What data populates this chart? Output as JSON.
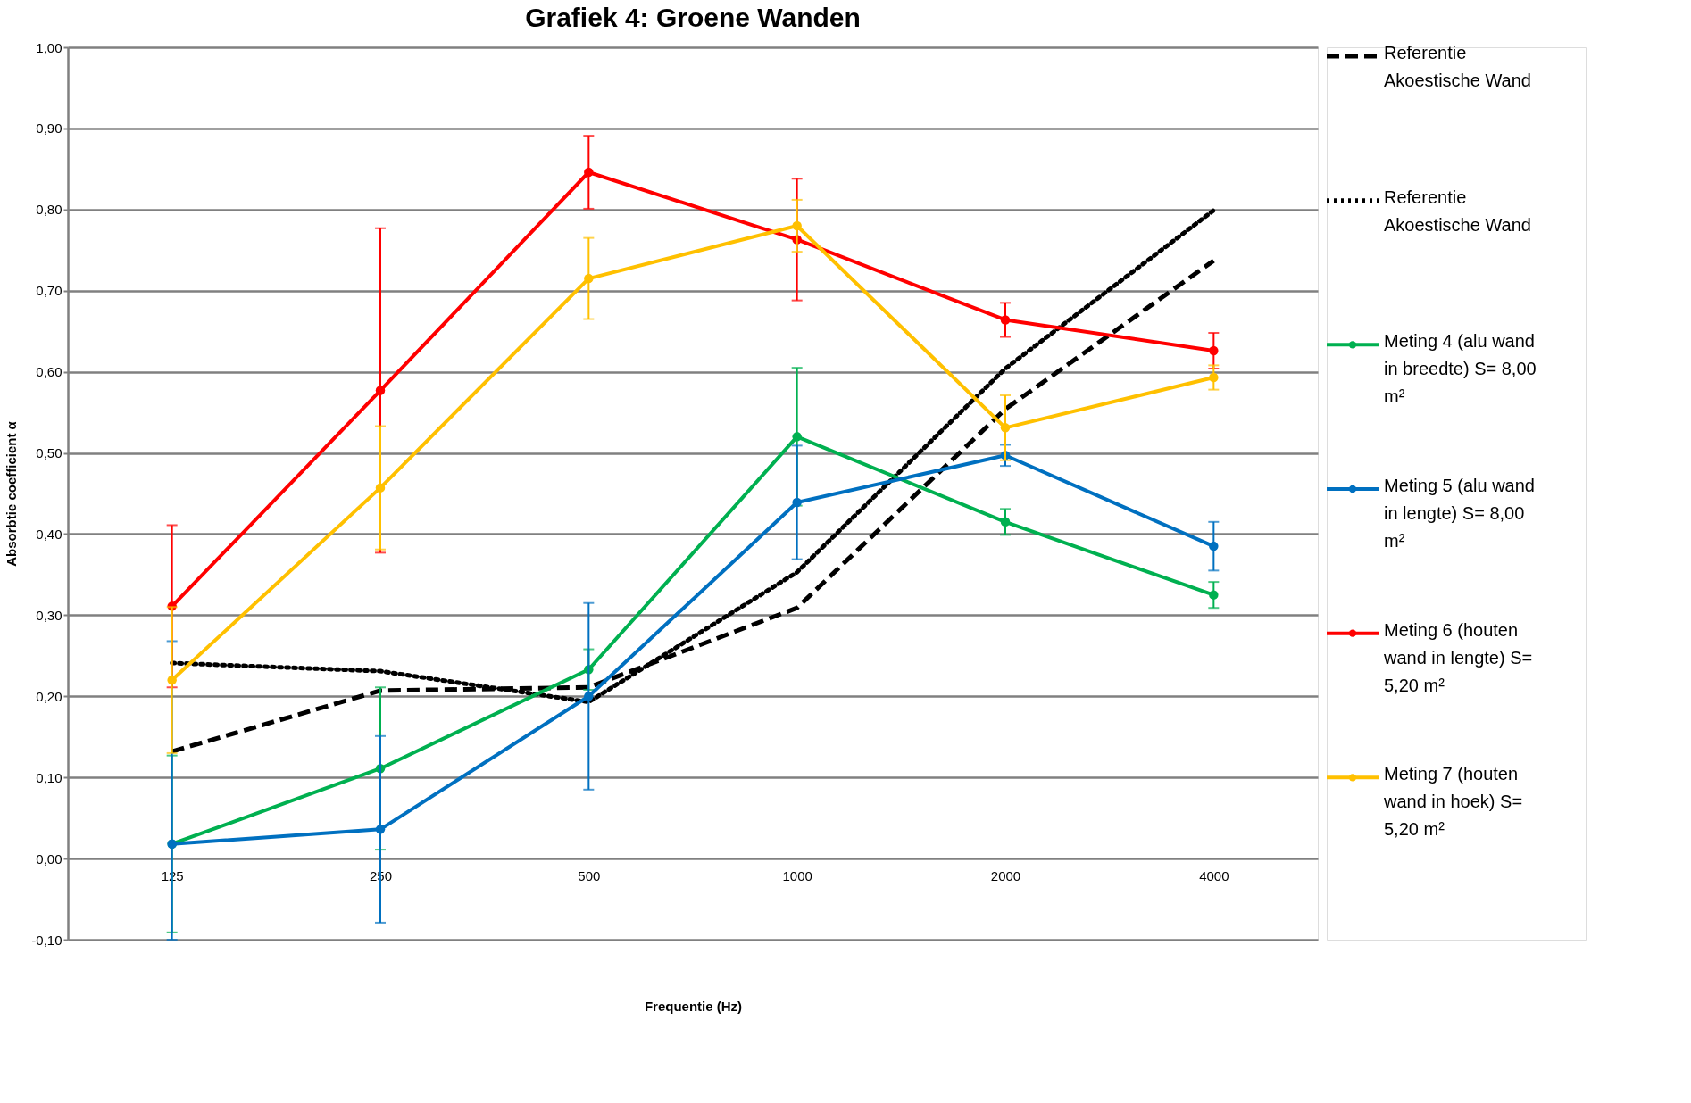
{
  "chart_data": {
    "type": "line",
    "title": "Grafiek 4: Groene Wanden",
    "xlabel": "Frequentie (Hz)",
    "ylabel": "Absorbtie coefficient  α",
    "categories": [
      "125",
      "250",
      "500",
      "1000",
      "2000",
      "4000"
    ],
    "ylim": [
      -0.1,
      1.0
    ],
    "yticks": [
      {
        "value": -0.1,
        "label": "-0,10"
      },
      {
        "value": 0,
        "label": "0,00"
      },
      {
        "value": 0.1,
        "label": "0,10"
      },
      {
        "value": 0.2,
        "label": "0,20"
      },
      {
        "value": 0.3,
        "label": "0,30"
      },
      {
        "value": 0.4,
        "label": "0,40"
      },
      {
        "value": 0.5,
        "label": "0,50"
      },
      {
        "value": 0.6,
        "label": "0,60"
      },
      {
        "value": 0.7,
        "label": "0,70"
      },
      {
        "value": 0.8,
        "label": "0,80"
      },
      {
        "value": 0.9,
        "label": "0,90"
      },
      {
        "value": 1.0,
        "label": "1,00"
      }
    ],
    "grid": "y",
    "legend": "right",
    "series": [
      {
        "name": "Referentie Akoestische Wand",
        "color": "#000000",
        "line_style": "dashed",
        "marker": "none",
        "values": [
          0.132,
          0.207,
          0.211,
          0.309,
          0.554,
          0.737
        ]
      },
      {
        "name": "Referentie Akoestische Wand",
        "color": "#000000",
        "line_style": "dotted",
        "marker": "none",
        "values": [
          0.241,
          0.231,
          0.193,
          0.353,
          0.604,
          0.799
        ]
      },
      {
        "name": "Meting 4 (alu wand in breedte) S= 8,00 m²",
        "color": "#00b050",
        "line_style": "solid",
        "marker": "circle",
        "values": [
          0.018,
          0.111,
          0.233,
          0.52,
          0.415,
          0.325
        ],
        "errors": [
          0.109,
          0.1,
          0.025,
          0.085,
          0.016,
          0.016
        ]
      },
      {
        "name": "Meting 5 (alu wand in lengte) S= 8,00 m²",
        "color": "#0070c0",
        "line_style": "solid",
        "marker": "circle",
        "values": [
          0.018,
          0.036,
          0.2,
          0.439,
          0.497,
          0.385
        ],
        "errors": [
          [
            -0.1,
            0.268
          ],
          0.115,
          0.115,
          0.07,
          0.013,
          0.03
        ]
      },
      {
        "name": "Meting 6 (houten wand in lengte) S= 5,20 m²",
        "color": "#ff0000",
        "line_style": "solid",
        "marker": "circle",
        "values": [
          0.311,
          0.577,
          0.846,
          0.763,
          0.664,
          0.626
        ],
        "errors": [
          0.1,
          0.2,
          0.045,
          0.075,
          0.021,
          0.022
        ]
      },
      {
        "name": "Meting 7 (houten wand in hoek) S= 5,20 m²",
        "color": "#ffc000",
        "line_style": "solid",
        "marker": "circle",
        "values": [
          0.22,
          0.457,
          0.715,
          0.78,
          0.531,
          0.593
        ],
        "errors": [
          0.09,
          0.076,
          0.05,
          0.032,
          0.04,
          0.015
        ]
      }
    ]
  }
}
